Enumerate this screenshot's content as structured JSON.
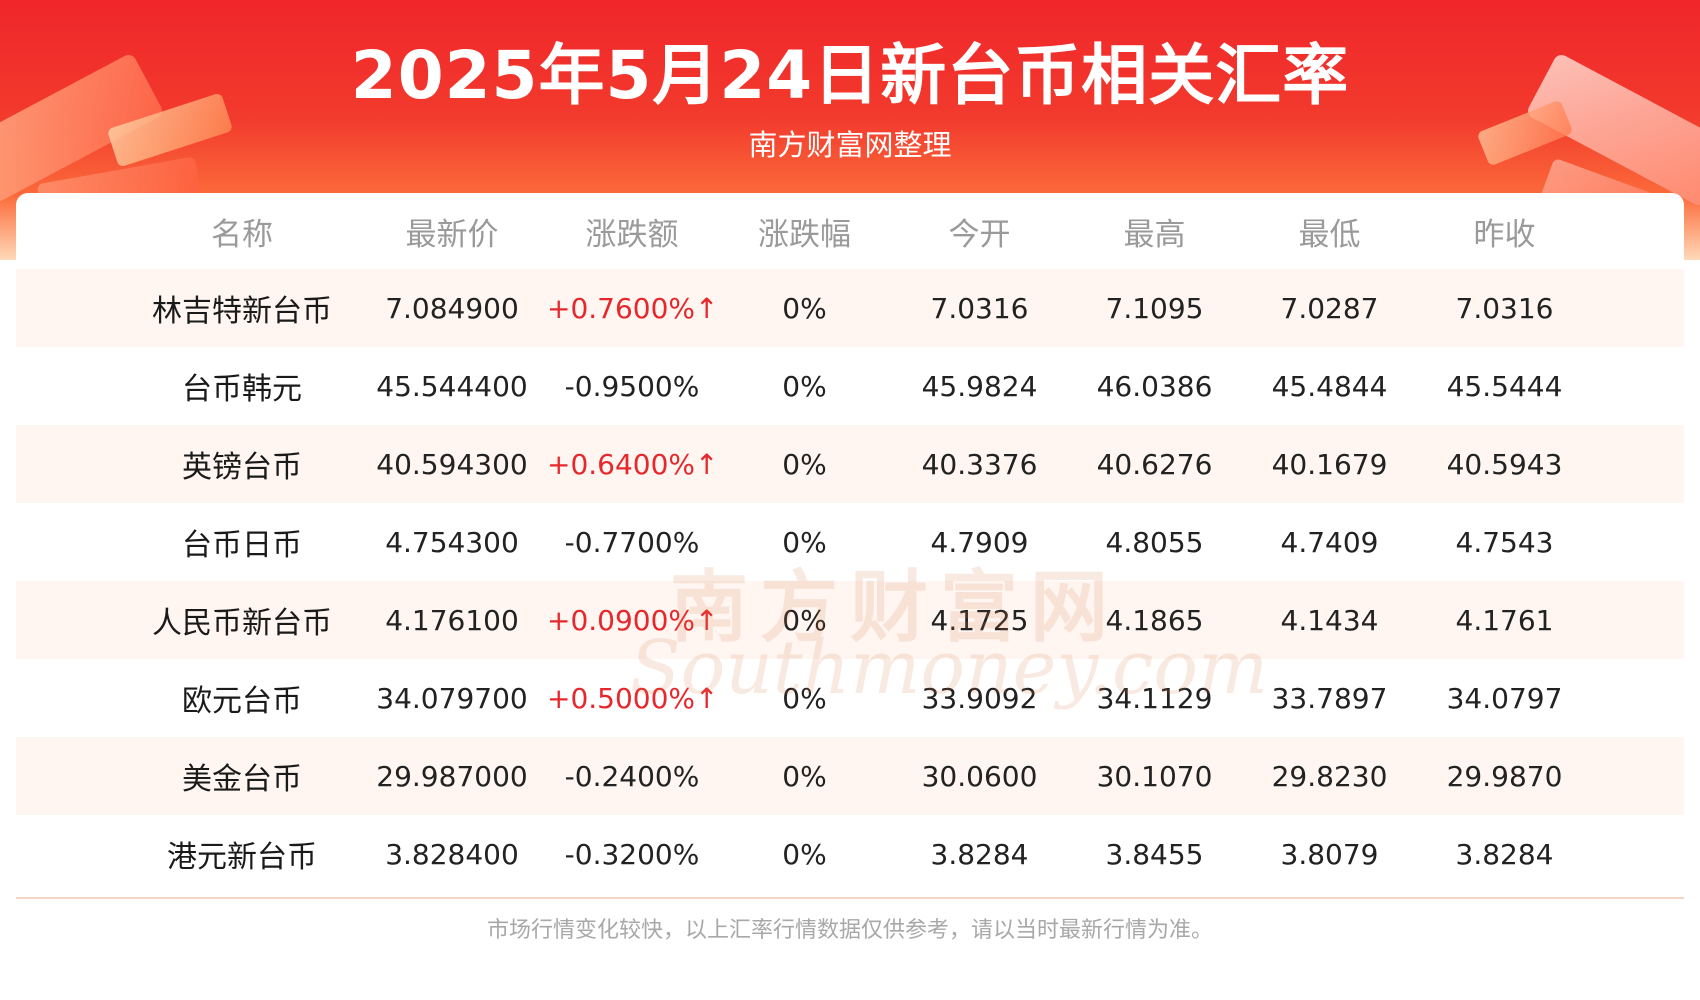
{
  "header": {
    "title": "2025年5月24日新台币相关汇率",
    "subtitle": "南方财富网整理"
  },
  "table": {
    "columns": [
      "名称",
      "最新价",
      "涨跌额",
      "涨跌幅",
      "今开",
      "最高",
      "最低",
      "昨收"
    ],
    "rows": [
      {
        "name": "林吉特新台币",
        "latest": "7.084900",
        "change": "+0.7600%↑",
        "direction": "up",
        "pct": "0%",
        "open": "7.0316",
        "high": "7.1095",
        "low": "7.0287",
        "prev_close": "7.0316"
      },
      {
        "name": "台币韩元",
        "latest": "45.544400",
        "change": "-0.9500%",
        "direction": "down",
        "pct": "0%",
        "open": "45.9824",
        "high": "46.0386",
        "low": "45.4844",
        "prev_close": "45.5444"
      },
      {
        "name": "英镑台币",
        "latest": "40.594300",
        "change": "+0.6400%↑",
        "direction": "up",
        "pct": "0%",
        "open": "40.3376",
        "high": "40.6276",
        "low": "40.1679",
        "prev_close": "40.5943"
      },
      {
        "name": "台币日币",
        "latest": "4.754300",
        "change": "-0.7700%",
        "direction": "down",
        "pct": "0%",
        "open": "4.7909",
        "high": "4.8055",
        "low": "4.7409",
        "prev_close": "4.7543"
      },
      {
        "name": "人民币新台币",
        "latest": "4.176100",
        "change": "+0.0900%↑",
        "direction": "up",
        "pct": "0%",
        "open": "4.1725",
        "high": "4.1865",
        "low": "4.1434",
        "prev_close": "4.1761"
      },
      {
        "name": "欧元台币",
        "latest": "34.079700",
        "change": "+0.5000%↑",
        "direction": "up",
        "pct": "0%",
        "open": "33.9092",
        "high": "34.1129",
        "low": "33.7897",
        "prev_close": "34.0797"
      },
      {
        "name": "美金台币",
        "latest": "29.987000",
        "change": "-0.2400%",
        "direction": "down",
        "pct": "0%",
        "open": "30.0600",
        "high": "30.1070",
        "low": "29.8230",
        "prev_close": "29.9870"
      },
      {
        "name": "港元新台币",
        "latest": "3.828400",
        "change": "-0.3200%",
        "direction": "down",
        "pct": "0%",
        "open": "3.8284",
        "high": "3.8455",
        "low": "3.8079",
        "prev_close": "3.8284"
      }
    ]
  },
  "watermark": {
    "cn": "南方财富网",
    "en": "Southmoney.com"
  },
  "footer": {
    "note": "市场行情变化较快，以上汇率行情数据仅供参考，请以当时最新行情为准。"
  },
  "colors": {
    "up": "#e6282d",
    "down": "#222222",
    "banner": "#f0262a"
  }
}
